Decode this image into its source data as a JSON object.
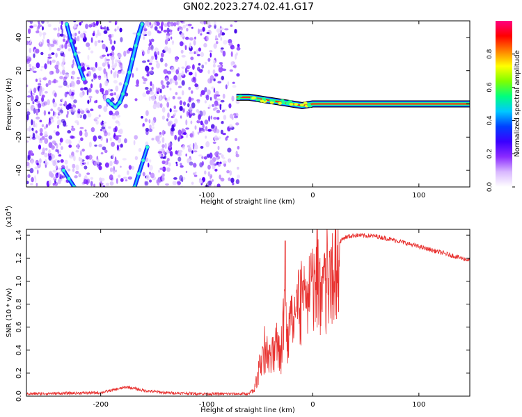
{
  "title": "GN02.2023.274.02.41.G17",
  "chart_data": [
    {
      "type": "heatmap",
      "name": "spectrogram",
      "xlabel": "Height of straight line (km)",
      "ylabel": "Frequency (Hz)",
      "xlim": [
        -270,
        148
      ],
      "ylim": [
        -50,
        50
      ],
      "xticks": [
        -200,
        -100,
        0,
        100
      ],
      "yticks": [
        -40,
        -20,
        0,
        20,
        40
      ],
      "xtick_labels": [
        "-200",
        "-100",
        "0",
        "100"
      ],
      "ytick_labels": [
        "-40",
        "-20",
        "0",
        "20",
        "40"
      ],
      "colorbar": {
        "label": "Normalized spectral amplitude",
        "range": [
          0,
          1
        ],
        "ticks": [
          "0.0",
          "0.2",
          "0.4",
          "0.6",
          "0.8"
        ],
        "colors": [
          "#ffffff",
          "#d9b8ff",
          "#8b2bff",
          "#3a00ff",
          "#0040ff",
          "#00c8ff",
          "#00ff7f",
          "#7fff00",
          "#ffff00",
          "#ff8000",
          "#ff0000",
          "#ff0080"
        ]
      },
      "noise_region_x": [
        -270,
        -70
      ],
      "ridge": [
        [
          -193,
          2
        ],
        [
          -190,
          0
        ],
        [
          -186,
          -2
        ],
        [
          -182,
          1
        ],
        [
          -179,
          6
        ],
        [
          -176,
          12
        ],
        [
          -173,
          19
        ],
        [
          -170,
          27
        ],
        [
          -167,
          35
        ],
        [
          -164,
          42
        ],
        [
          -161,
          48
        ]
      ],
      "mirror_ridges": [
        [
          [
            -232,
            48
          ],
          [
            -228,
            38
          ],
          [
            -224,
            30
          ],
          [
            -220,
            22
          ],
          [
            -216,
            15
          ]
        ],
        [
          [
            -235,
            -40
          ],
          [
            -230,
            -45
          ],
          [
            -225,
            -50
          ]
        ],
        [
          [
            -168,
            -50
          ],
          [
            -164,
            -42
          ],
          [
            -160,
            -34
          ],
          [
            -156,
            -26
          ]
        ]
      ],
      "main_signal": [
        [
          -72,
          4
        ],
        [
          -60,
          4
        ],
        [
          -50,
          3
        ],
        [
          -40,
          2
        ],
        [
          -30,
          1
        ],
        [
          -20,
          0
        ],
        [
          -10,
          -1
        ],
        [
          0,
          0
        ],
        [
          20,
          0
        ],
        [
          60,
          0
        ],
        [
          148,
          0
        ]
      ]
    },
    {
      "type": "line",
      "name": "snr",
      "xlabel": "Height of straight line (km)",
      "ylabel": "SNR (10 * v/v)",
      "scale_label": "(x10",
      "scale_exp": "4",
      "scale_close": ")",
      "xlim": [
        -270,
        148
      ],
      "ylim": [
        0,
        1.45
      ],
      "xticks": [
        -200,
        -100,
        0,
        100
      ],
      "yticks": [
        0,
        0.2,
        0.4,
        0.6,
        0.8,
        1.0,
        1.2,
        1.4
      ],
      "xtick_labels": [
        "-200",
        "-100",
        "0",
        "100"
      ],
      "ytick_labels": [
        "0.0",
        "0.2",
        "0.4",
        "0.6",
        "0.8",
        "1.0",
        "1.2",
        "1.4"
      ],
      "color": "#e8302e",
      "series": [
        {
          "x": -270,
          "y": 0.02
        },
        {
          "x": -200,
          "y": 0.03
        },
        {
          "x": -185,
          "y": 0.06
        },
        {
          "x": -175,
          "y": 0.08
        },
        {
          "x": -160,
          "y": 0.05
        },
        {
          "x": -140,
          "y": 0.03
        },
        {
          "x": -100,
          "y": 0.02
        },
        {
          "x": -60,
          "y": 0.02
        },
        {
          "x": -55,
          "y": 0.08
        },
        {
          "x": -50,
          "y": 0.3
        },
        {
          "x": -45,
          "y": 0.5
        },
        {
          "x": -40,
          "y": 0.35
        },
        {
          "x": -35,
          "y": 0.55
        },
        {
          "x": -30,
          "y": 0.45
        },
        {
          "x": -26,
          "y": 1.3
        },
        {
          "x": -25,
          "y": 0.6
        },
        {
          "x": -20,
          "y": 0.75
        },
        {
          "x": -15,
          "y": 0.95
        },
        {
          "x": -10,
          "y": 1.0
        },
        {
          "x": -5,
          "y": 1.05
        },
        {
          "x": 0,
          "y": 1.1
        },
        {
          "x": 5,
          "y": 1.2
        },
        {
          "x": 10,
          "y": 1.25
        },
        {
          "x": 20,
          "y": 1.3
        },
        {
          "x": 30,
          "y": 1.38
        },
        {
          "x": 40,
          "y": 1.4
        },
        {
          "x": 60,
          "y": 1.39
        },
        {
          "x": 80,
          "y": 1.35
        },
        {
          "x": 100,
          "y": 1.3
        },
        {
          "x": 120,
          "y": 1.25
        },
        {
          "x": 148,
          "y": 1.18
        }
      ]
    }
  ]
}
